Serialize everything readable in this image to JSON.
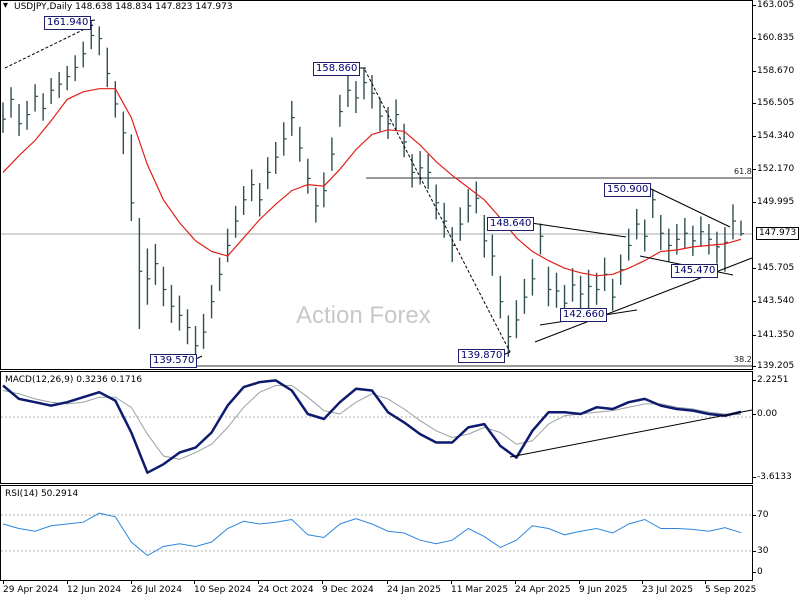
{
  "watermark": "Action Forex",
  "colors": {
    "bars": "#2f4f4f",
    "moving_average": "#e0201a",
    "macd": "#0d1b6e",
    "signal": "#9aa0a6",
    "rsi": "#2e86de",
    "annotation": "#00006b"
  },
  "icons": {
    "header": "collapse-arrow-icon"
  },
  "chart_data": [
    {
      "type": "line",
      "title": "USDJPY,Daily",
      "header_values": "148.638 148.834 147.823 147.973",
      "ylim": [
        139.205,
        163.005
      ],
      "y_tick_labels": [
        "163.005",
        "160.835",
        "158.670",
        "156.505",
        "154.340",
        "152.170",
        "149.995",
        "145.705",
        "143.540",
        "141.350",
        "139.205"
      ],
      "current_price_label": "147.973",
      "x_tick_labels": [
        "29 Apr 2024",
        "12 Jun 2024",
        "26 Jul 2024",
        "10 Sep 2024",
        "24 Oct 2024",
        "9 Dec 2024",
        "24 Jan 2025",
        "11 Mar 2025",
        "24 Apr 2025",
        "9 Jun 2025",
        "23 Jul 2025",
        "5 Sep 2025"
      ],
      "annotations": [
        "161.940",
        "158.860",
        "139.570",
        "139.870",
        "148.640",
        "150.900",
        "145.470",
        "142.660"
      ],
      "fib_labels": [
        "61.8",
        "38.2"
      ],
      "high": [
        156.6,
        157.6,
        156.5,
        156.7,
        157.8,
        157.2,
        158.2,
        158.6,
        159.0,
        159.7,
        160.6,
        161.94,
        161.6,
        160.2,
        158.0,
        156.0,
        154.5,
        149.0,
        147.0,
        147.3,
        145.8,
        144.6,
        143.9,
        143.0,
        141.9,
        142.7,
        144.6,
        146.4,
        148.3,
        149.8,
        151.1,
        152.2,
        151.3,
        153.0,
        154.0,
        155.3,
        156.7,
        155.0,
        152.9,
        151.0,
        152.0,
        154.3,
        157.1,
        158.4,
        158.0,
        158.86,
        158.4,
        156.9,
        156.3,
        156.8,
        155.2,
        153.2,
        153.4,
        153.2,
        151.2,
        150.0,
        148.4,
        149.7,
        150.9,
        151.4,
        149.2,
        147.9,
        145.2,
        142.6,
        143.6,
        145.0,
        146.3,
        148.64,
        145.8,
        145.4,
        144.6,
        145.7,
        145.2,
        145.6,
        145.4,
        146.4,
        145.0,
        146.6,
        148.3,
        149.6,
        148.9,
        150.9,
        149.2,
        148.3,
        148.6,
        149.0,
        148.5,
        149.1,
        148.6,
        148.1,
        148.4,
        149.9,
        148.834
      ],
      "low": [
        154.6,
        155.6,
        154.4,
        154.8,
        156.0,
        155.4,
        156.5,
        156.9,
        157.4,
        158.0,
        158.9,
        160.1,
        159.7,
        157.6,
        155.6,
        153.2,
        148.8,
        141.7,
        143.3,
        144.6,
        143.2,
        142.1,
        141.6,
        140.7,
        139.57,
        140.4,
        142.4,
        144.2,
        146.1,
        147.7,
        149.2,
        150.1,
        149.1,
        150.9,
        151.9,
        153.1,
        154.4,
        152.7,
        150.6,
        148.7,
        149.7,
        152.1,
        155.0,
        156.3,
        155.9,
        156.8,
        156.2,
        154.7,
        154.2,
        154.8,
        153.0,
        151.0,
        151.2,
        150.9,
        148.9,
        147.7,
        146.1,
        147.5,
        148.7,
        149.3,
        146.4,
        145.2,
        142.4,
        139.87,
        141.1,
        142.7,
        143.9,
        146.6,
        143.2,
        143.1,
        142.8,
        143.5,
        143.0,
        142.66,
        143.3,
        144.2,
        142.9,
        144.6,
        146.2,
        147.6,
        146.8,
        149.0,
        146.9,
        146.1,
        146.6,
        147.0,
        146.5,
        147.1,
        146.6,
        146.0,
        145.47,
        147.6,
        147.823
      ],
      "close": [
        155.5,
        156.8,
        155.2,
        155.8,
        157.0,
        156.2,
        157.4,
        157.8,
        158.3,
        158.9,
        159.8,
        161.0,
        160.8,
        158.5,
        156.5,
        154.6,
        150.0,
        145.5,
        145.0,
        146.0,
        144.3,
        143.2,
        142.6,
        141.8,
        140.6,
        141.5,
        143.5,
        145.3,
        147.2,
        148.8,
        150.2,
        151.2,
        150.2,
        152.0,
        153.0,
        154.2,
        155.6,
        153.6,
        151.6,
        149.8,
        150.8,
        153.2,
        156.0,
        157.4,
        156.9,
        157.9,
        157.2,
        155.7,
        155.2,
        155.8,
        154.0,
        152.0,
        152.3,
        152.0,
        150.0,
        148.8,
        147.2,
        148.6,
        149.8,
        150.3,
        147.5,
        146.5,
        143.5,
        141.2,
        142.3,
        143.8,
        145.0,
        147.8,
        144.3,
        144.2,
        143.4,
        144.6,
        144.0,
        144.5,
        144.3,
        145.3,
        143.8,
        145.6,
        147.2,
        148.6,
        147.8,
        150.2,
        148.0,
        147.2,
        147.6,
        148.0,
        147.5,
        148.1,
        147.6,
        147.1,
        147.4,
        148.8,
        147.973
      ],
      "moving_average": [
        152.0,
        153.1,
        154.1,
        155.4,
        156.8,
        157.3,
        157.5,
        157.5,
        155.6,
        152.5,
        150.2,
        148.7,
        147.5,
        146.8,
        146.5,
        147.7,
        148.9,
        149.9,
        150.8,
        151.2,
        151.1,
        152.2,
        153.5,
        154.5,
        154.8,
        154.7,
        153.8,
        152.7,
        151.8,
        151.0,
        150.2,
        149.0,
        147.7,
        146.8,
        146.2,
        145.7,
        145.4,
        145.2,
        145.3,
        145.7,
        146.2,
        146.8,
        146.9,
        147.1,
        147.2,
        147.3,
        147.6
      ]
    },
    {
      "type": "line",
      "label": "MACD(12,26,9) 0.3236 0.1716",
      "ylim": [
        -3.6133,
        2.2251
      ],
      "y_tick_labels": [
        "2.2251",
        "0.00",
        "-3.6133"
      ],
      "macd": [
        1.9,
        1.1,
        0.9,
        0.7,
        0.9,
        1.2,
        1.5,
        1.0,
        -0.9,
        -3.3,
        -2.8,
        -2.1,
        -1.8,
        -0.9,
        0.7,
        1.8,
        2.1,
        2.2,
        1.6,
        0.2,
        -0.1,
        0.9,
        1.7,
        1.6,
        0.3,
        -0.3,
        -1.0,
        -1.5,
        -1.5,
        -0.6,
        -0.4,
        -1.7,
        -2.4,
        -0.8,
        0.3,
        0.3,
        0.2,
        0.6,
        0.5,
        0.9,
        1.1,
        0.7,
        0.5,
        0.4,
        0.2,
        0.1,
        0.3236
      ],
      "signal": [
        1.6,
        1.4,
        1.1,
        0.9,
        0.8,
        0.9,
        1.2,
        1.2,
        0.6,
        -1.0,
        -2.3,
        -2.5,
        -2.1,
        -1.6,
        -0.6,
        0.6,
        1.5,
        1.9,
        1.9,
        1.2,
        0.4,
        0.2,
        0.9,
        1.4,
        1.1,
        0.5,
        -0.2,
        -0.8,
        -1.2,
        -1.0,
        -0.6,
        -0.9,
        -1.6,
        -1.4,
        -0.4,
        0.1,
        0.2,
        0.3,
        0.4,
        0.6,
        0.8,
        0.8,
        0.6,
        0.5,
        0.3,
        0.2,
        0.1716
      ]
    },
    {
      "type": "line",
      "label": "RSI(14) 50.2914",
      "ylim": [
        0,
        100
      ],
      "y_tick_labels": [
        "70",
        "30",
        "0"
      ],
      "levels": [
        70,
        30
      ],
      "values": [
        60,
        55,
        52,
        58,
        60,
        62,
        72,
        68,
        40,
        25,
        35,
        38,
        35,
        40,
        55,
        63,
        60,
        62,
        65,
        48,
        45,
        60,
        66,
        60,
        52,
        50,
        42,
        38,
        42,
        55,
        46,
        34,
        42,
        58,
        55,
        48,
        52,
        55,
        50,
        60,
        65,
        55,
        55,
        54,
        52,
        56,
        50.29
      ]
    }
  ]
}
